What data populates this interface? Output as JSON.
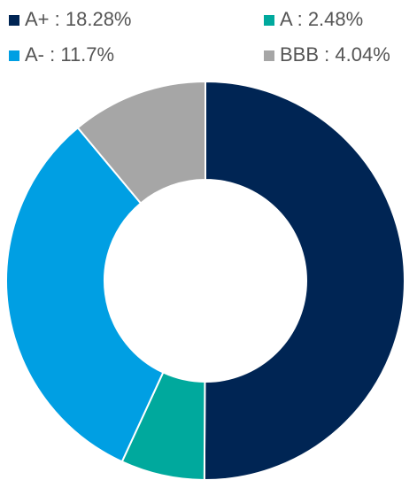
{
  "chart_data": {
    "type": "donut",
    "categories": [
      "A+",
      "A",
      "A-",
      "BBB"
    ],
    "values": [
      18.28,
      2.48,
      11.7,
      4.04
    ],
    "value_labels": [
      "18.28%",
      "2.48%",
      "11.7%",
      "4.04%"
    ],
    "legend_separator": " : ",
    "colors": [
      "#002554",
      "#00a99d",
      "#009fe3",
      "#a6a6a6"
    ],
    "legend": "top"
  }
}
